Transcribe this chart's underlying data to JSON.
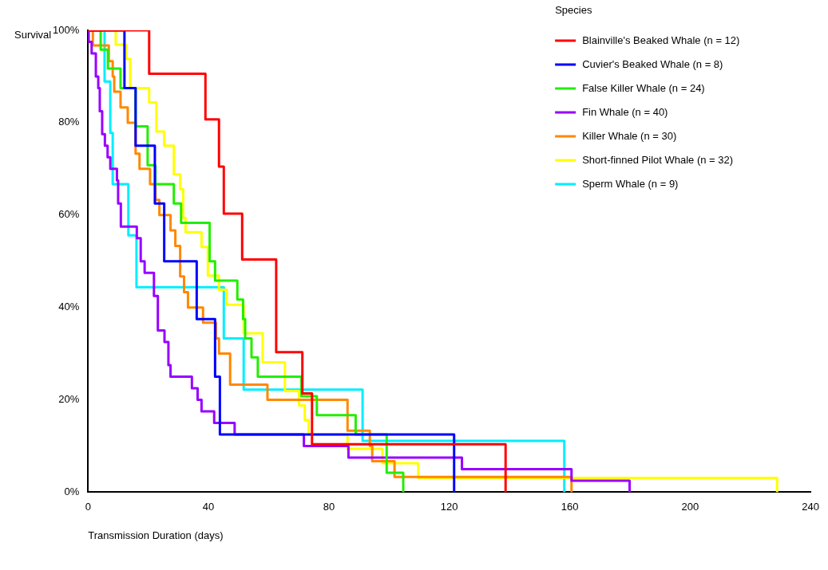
{
  "chart_data": {
    "type": "step",
    "xlabel": "Transmission Duration (days)",
    "ylabel": "Survival",
    "legend_title": "Species",
    "legend": "top right",
    "grid": false,
    "xlim": [
      0,
      240
    ],
    "xticks": [
      0,
      40,
      80,
      120,
      160,
      200,
      240
    ],
    "ylim": [
      0,
      100
    ],
    "yticks": [
      {
        "value": 0,
        "label": "0%"
      },
      {
        "value": 20,
        "label": "20%"
      },
      {
        "value": 40,
        "label": "40%"
      },
      {
        "value": 60,
        "label": "60%"
      },
      {
        "value": 80,
        "label": "80%"
      },
      {
        "value": 100,
        "label": "100%"
      }
    ],
    "series": [
      {
        "name": "Blainville's Beaked Whale (n = 12)",
        "color": "#ff0000",
        "x": [
          0,
          20.3,
          39.0,
          43.5,
          45.1,
          51.2,
          62.5,
          71.2,
          74.4,
          138.7
        ],
        "values": [
          100,
          90.6,
          80.7,
          70.5,
          60.3,
          50.4,
          30.3,
          21.4,
          10.4,
          0
        ]
      },
      {
        "name": "Cuvier's Beaked Whale (n = 8)",
        "color": "#0000ff",
        "x": [
          0,
          12.1,
          15.8,
          22.2,
          25.3,
          36.1,
          42.2,
          43.8,
          121.6
        ],
        "values": [
          100,
          87.5,
          75,
          62.5,
          50,
          37.5,
          25,
          12.5,
          0
        ]
      },
      {
        "name": "False Killer Whale (n = 24)",
        "color": "#22ee00",
        "x": [
          0,
          4.2,
          6.6,
          10.8,
          15.8,
          19.8,
          22.4,
          28.5,
          30.9,
          40.4,
          42.2,
          49.6,
          51.5,
          52.2,
          54.3,
          56.4,
          70.9,
          76.0,
          88.9,
          99.2,
          104.7
        ],
        "values": [
          100,
          95.8,
          91.7,
          87.5,
          79.2,
          70.8,
          66.7,
          62.5,
          58.3,
          50,
          45.8,
          41.7,
          37.5,
          33.3,
          29.2,
          25,
          20.8,
          16.7,
          12.5,
          4.2,
          0
        ]
      },
      {
        "name": "Fin Whale (n = 40)",
        "color": "#9900ff",
        "x": [
          0,
          0.2,
          1.2,
          2.6,
          3.4,
          3.9,
          4.7,
          5.6,
          6.5,
          7.4,
          9.6,
          10.0,
          10.9,
          16.2,
          17.5,
          18.8,
          21.9,
          23.2,
          25.4,
          26.7,
          27.4,
          34.5,
          36.4,
          37.7,
          41.9,
          48.7,
          71.7,
          86.5,
          124.2,
          160.6,
          179.9
        ],
        "values": [
          100,
          97.5,
          95,
          90,
          87.5,
          82.5,
          77.5,
          75,
          72.5,
          70,
          67.5,
          62.5,
          57.5,
          55,
          50,
          47.5,
          42.5,
          35,
          32.5,
          27.5,
          25,
          22.5,
          20,
          17.5,
          15,
          12.5,
          10,
          7.5,
          5,
          2.5,
          0
        ]
      },
      {
        "name": "Killer Whale (n = 30)",
        "color": "#ff8800",
        "x": [
          0,
          1.6,
          6.9,
          8.2,
          8.7,
          10.8,
          13.2,
          15.8,
          17.1,
          20.6,
          22.4,
          23.7,
          27.4,
          29.0,
          30.6,
          31.9,
          33.2,
          38.2,
          42.5,
          43.5,
          47.2,
          59.6,
          86.2,
          93.6,
          94.4,
          101.8,
          160.6
        ],
        "values": [
          100,
          96.7,
          93.3,
          90,
          86.7,
          83.3,
          80,
          73.3,
          70,
          66.7,
          63.3,
          60,
          56.7,
          53.3,
          46.7,
          43.3,
          40,
          36.7,
          33.3,
          30,
          23.3,
          20,
          13.3,
          10,
          6.7,
          3.3,
          0
        ]
      },
      {
        "name": "Short-finned Pilot Whale (n = 32)",
        "color": "#ffff00",
        "x": [
          0,
          9.2,
          12.7,
          14.0,
          20.3,
          22.7,
          25.3,
          28.5,
          30.6,
          31.6,
          32.4,
          37.7,
          39.8,
          43.5,
          46.1,
          51.7,
          58.0,
          65.4,
          70.1,
          72.0,
          73.3,
          86.2,
          97.8,
          109.7,
          228.9
        ],
        "values": [
          100,
          96.9,
          93.8,
          87.5,
          84.4,
          78.1,
          75,
          68.8,
          65.6,
          59.4,
          56.3,
          53.1,
          46.9,
          43.8,
          40.6,
          34.4,
          28.1,
          21.9,
          18.8,
          15.6,
          12.5,
          9.4,
          6.3,
          3.1,
          0
        ]
      },
      {
        "name": "Sperm Whale (n = 9)",
        "color": "#00eeff",
        "x": [
          0,
          5.5,
          7.4,
          8.2,
          13.4,
          16.1,
          45.1,
          51.7,
          91.2,
          158.2
        ],
        "values": [
          100,
          88.9,
          77.8,
          66.7,
          55.6,
          44.4,
          33.3,
          22.2,
          11.1,
          0
        ]
      }
    ]
  }
}
